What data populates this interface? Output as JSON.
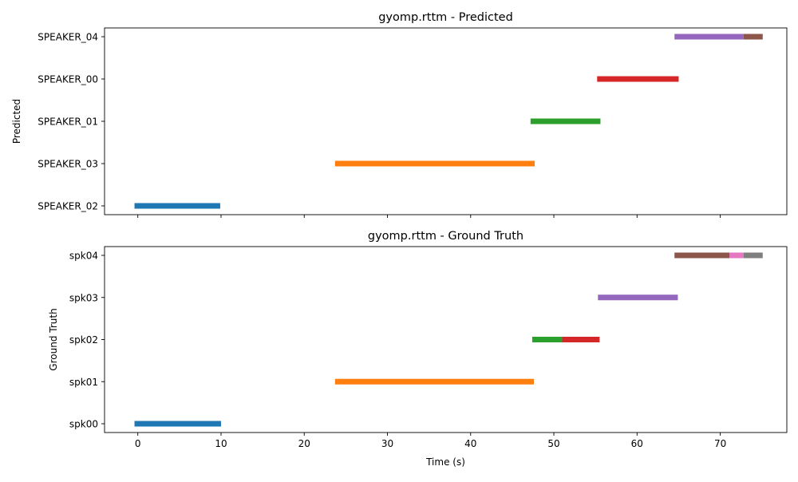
{
  "chart_data": [
    {
      "type": "timeline",
      "title": "gyomp.rttm - Predicted",
      "xlabel": "",
      "ylabel": "Predicted",
      "xlim": [
        -4,
        78
      ],
      "xticks": [
        0,
        10,
        20,
        30,
        40,
        50,
        60,
        70
      ],
      "show_xtick_labels": false,
      "categories": [
        "SPEAKER_02",
        "SPEAKER_03",
        "SPEAKER_01",
        "SPEAKER_00",
        "SPEAKER_04"
      ],
      "segments": [
        {
          "category": "SPEAKER_02",
          "start": -0.4,
          "end": 9.9,
          "color": "#1f77b4"
        },
        {
          "category": "SPEAKER_03",
          "start": 23.7,
          "end": 47.7,
          "color": "#ff7f0e"
        },
        {
          "category": "SPEAKER_01",
          "start": 47.2,
          "end": 55.6,
          "color": "#2ca02c"
        },
        {
          "category": "SPEAKER_00",
          "start": 55.2,
          "end": 65.0,
          "color": "#d62728"
        },
        {
          "category": "SPEAKER_04",
          "start": 64.5,
          "end": 72.8,
          "color": "#9467bd"
        },
        {
          "category": "SPEAKER_04",
          "start": 72.8,
          "end": 75.1,
          "color": "#8c564b"
        }
      ]
    },
    {
      "type": "timeline",
      "title": "gyomp.rttm - Ground Truth",
      "xlabel": "Time (s)",
      "ylabel": "Ground Truth",
      "xlim": [
        -4,
        78
      ],
      "xticks": [
        0,
        10,
        20,
        30,
        40,
        50,
        60,
        70
      ],
      "show_xtick_labels": true,
      "categories": [
        "spk00",
        "spk01",
        "spk02",
        "spk03",
        "spk04"
      ],
      "segments": [
        {
          "category": "spk00",
          "start": -0.4,
          "end": 10.0,
          "color": "#1f77b4"
        },
        {
          "category": "spk01",
          "start": 23.7,
          "end": 47.6,
          "color": "#ff7f0e"
        },
        {
          "category": "spk02",
          "start": 47.4,
          "end": 51.0,
          "color": "#2ca02c"
        },
        {
          "category": "spk02",
          "start": 51.0,
          "end": 55.5,
          "color": "#d62728"
        },
        {
          "category": "spk03",
          "start": 55.3,
          "end": 64.9,
          "color": "#9467bd"
        },
        {
          "category": "spk04",
          "start": 64.5,
          "end": 71.1,
          "color": "#8c564b"
        },
        {
          "category": "spk04",
          "start": 71.1,
          "end": 72.8,
          "color": "#e377c2"
        },
        {
          "category": "spk04",
          "start": 72.8,
          "end": 75.1,
          "color": "#7f7f7f"
        }
      ]
    }
  ]
}
